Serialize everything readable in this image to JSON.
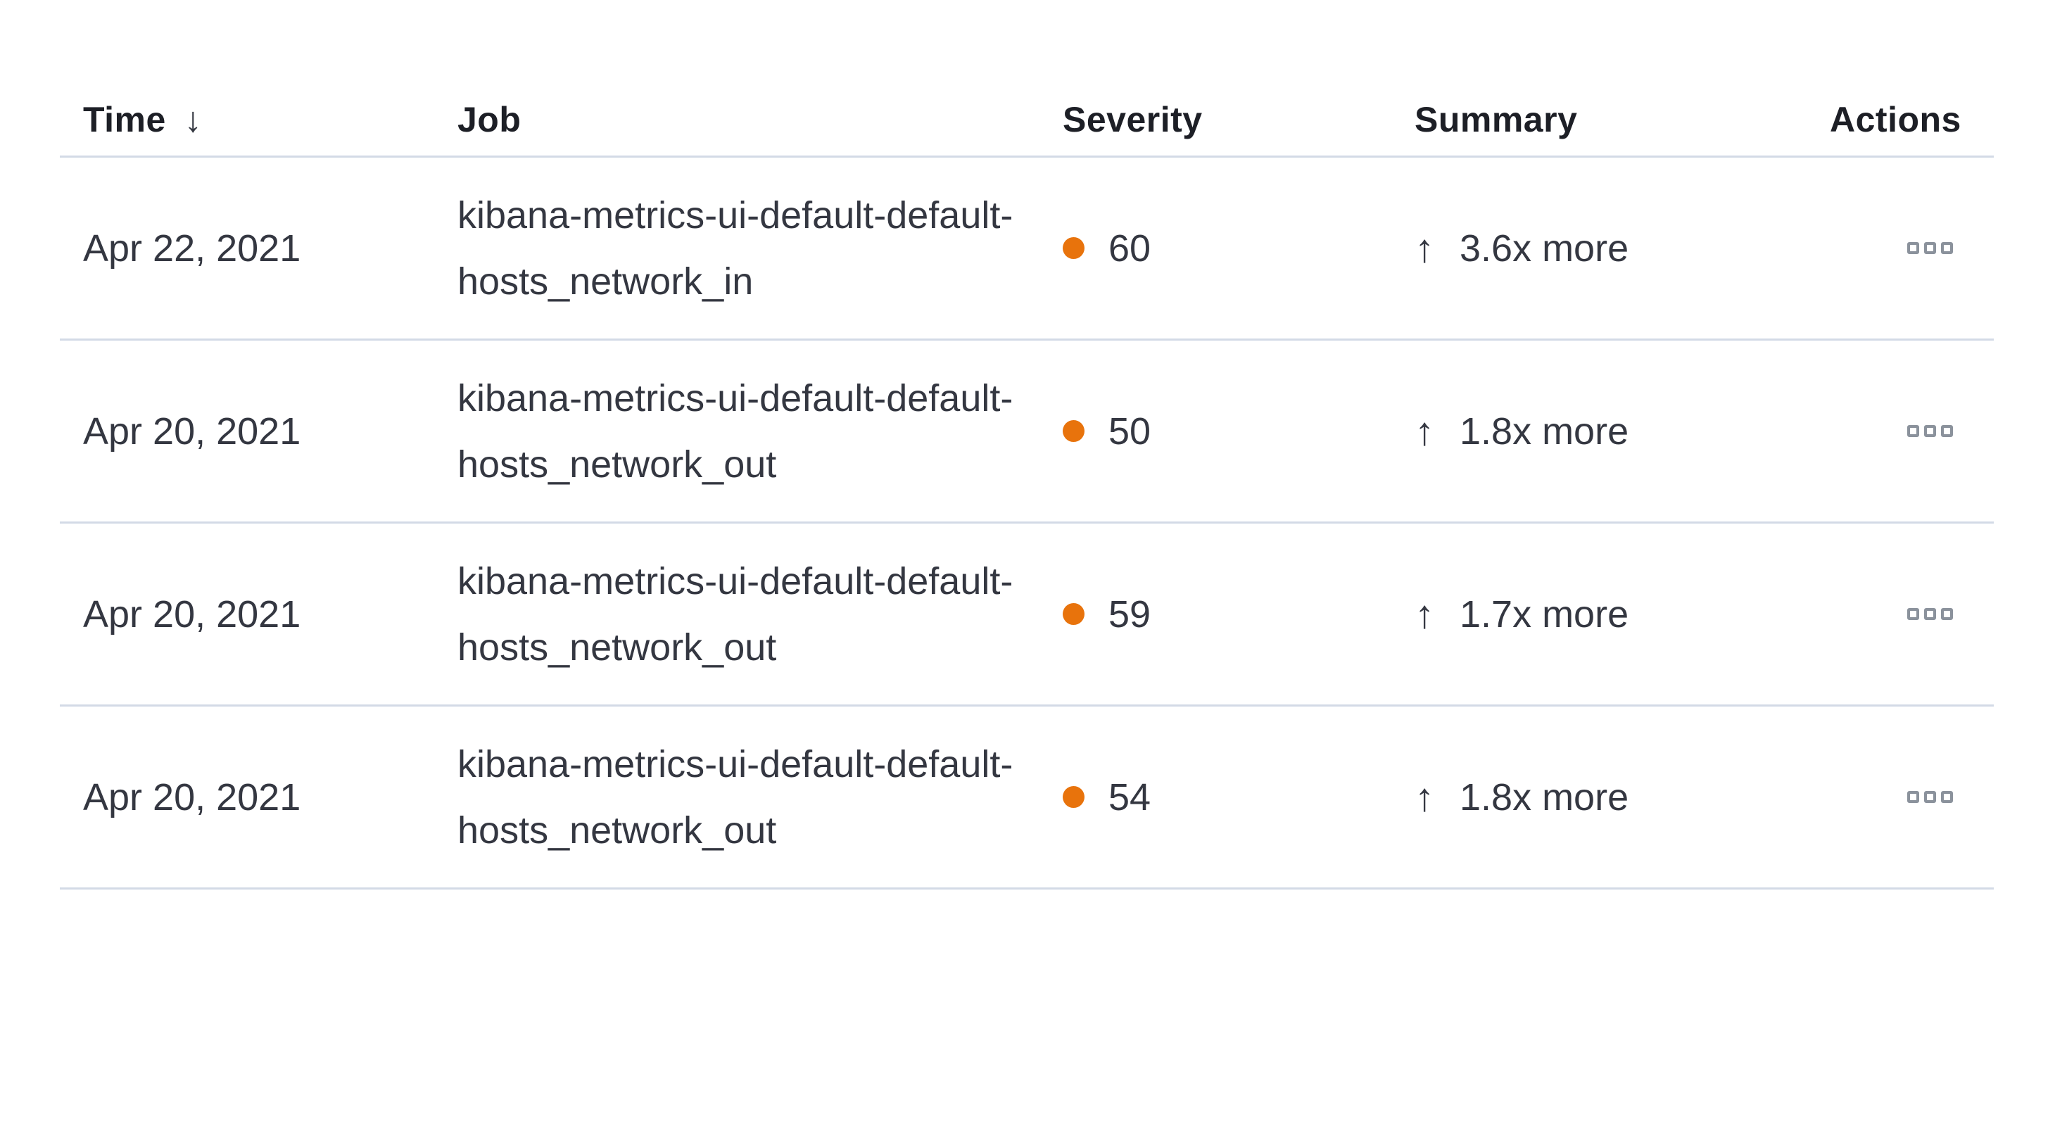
{
  "table": {
    "columns": [
      {
        "label": "Time",
        "sort": "descending"
      },
      {
        "label": "Job",
        "sort": ""
      },
      {
        "label": "Severity",
        "sort": ""
      },
      {
        "label": "Summary",
        "sort": ""
      },
      {
        "label": "Actions",
        "sort": ""
      }
    ],
    "rows": [
      {
        "time": "Apr 22, 2021",
        "job": "kibana-metrics-ui-default-default-hosts_network_in",
        "severity": 60,
        "summary": "3.6x more"
      },
      {
        "time": "Apr 20, 2021",
        "job": "kibana-metrics-ui-default-default-hosts_network_out",
        "severity": 50,
        "summary": "1.8x more"
      },
      {
        "time": "Apr 20, 2021",
        "job": "kibana-metrics-ui-default-default-hosts_network_out",
        "severity": 59,
        "summary": "1.7x more"
      },
      {
        "time": "Apr 20, 2021",
        "job": "kibana-metrics-ui-default-default-hosts_network_out",
        "severity": 54,
        "summary": "1.8x more"
      }
    ],
    "icons": {
      "sort_descending": "↓",
      "trend_up": "↑",
      "actions": "boxes-horizontal"
    },
    "colors": {
      "severity_dot": "#e8730c",
      "divider": "#d3dae6",
      "text": "#343741",
      "actions_icon": "#8b929c"
    }
  }
}
